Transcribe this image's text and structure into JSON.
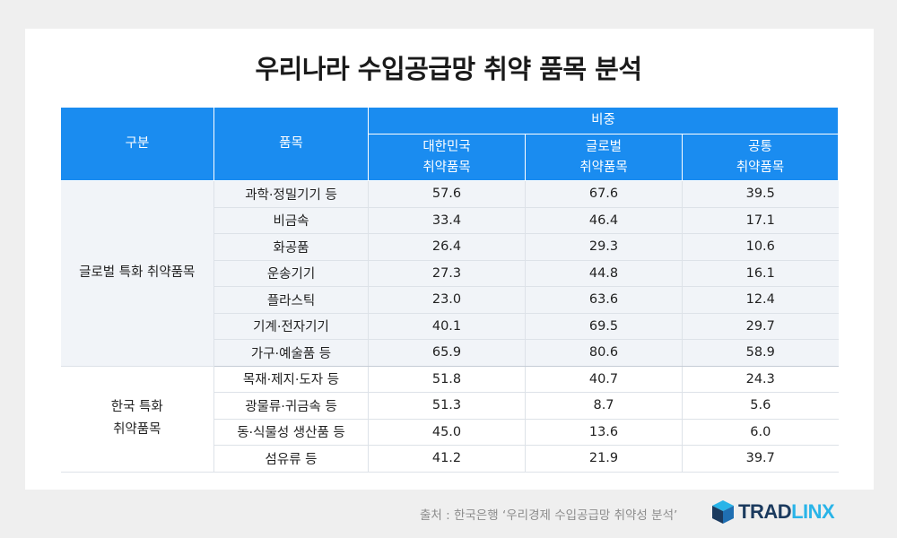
{
  "title": "우리나라 수입공급망 취약 품목 분석",
  "table": {
    "headers": {
      "category": "구분",
      "item": "품목",
      "share": "비중",
      "korea": [
        "대한민국",
        "취약품목"
      ],
      "global": [
        "글로벌",
        "취약품목"
      ],
      "common": [
        "공통",
        "취약품목"
      ]
    },
    "groups": [
      {
        "label_lines": [
          "글로벌 특화 취약품목"
        ],
        "rows": [
          [
            "과학·정밀기기 등",
            "57.6",
            "67.6",
            "39.5"
          ],
          [
            "비금속",
            "33.4",
            "46.4",
            "17.1"
          ],
          [
            "화공품",
            "26.4",
            "29.3",
            "10.6"
          ],
          [
            "운송기기",
            "27.3",
            "44.8",
            "16.1"
          ],
          [
            "플라스틱",
            "23.0",
            "63.6",
            "12.4"
          ],
          [
            "기계·전자기기",
            "40.1",
            "69.5",
            "29.7"
          ],
          [
            "가구·예술품 등",
            "65.9",
            "80.6",
            "58.9"
          ]
        ]
      },
      {
        "label_lines": [
          "한국 특화",
          "취약품목"
        ],
        "rows": [
          [
            "목재·제지·도자 등",
            "51.8",
            "40.7",
            "24.3"
          ],
          [
            "광물류·귀금속 등",
            "51.3",
            "8.7",
            "5.6"
          ],
          [
            "동·식물성 생산품 등",
            "45.0",
            "13.6",
            "6.0"
          ],
          [
            "섬유류 등",
            "41.2",
            "21.9",
            "39.7"
          ]
        ]
      }
    ]
  },
  "source": "출처 : 한국은행 ‘우리경제 수입공급망 취약성 분석’",
  "logo": {
    "part1": "TRAD",
    "part2": "LINX",
    "dark": "#1b3a5e",
    "light": "#29b4e8"
  },
  "colors": {
    "header": "#1a8cf0",
    "group_bg": "#f1f4f8"
  }
}
